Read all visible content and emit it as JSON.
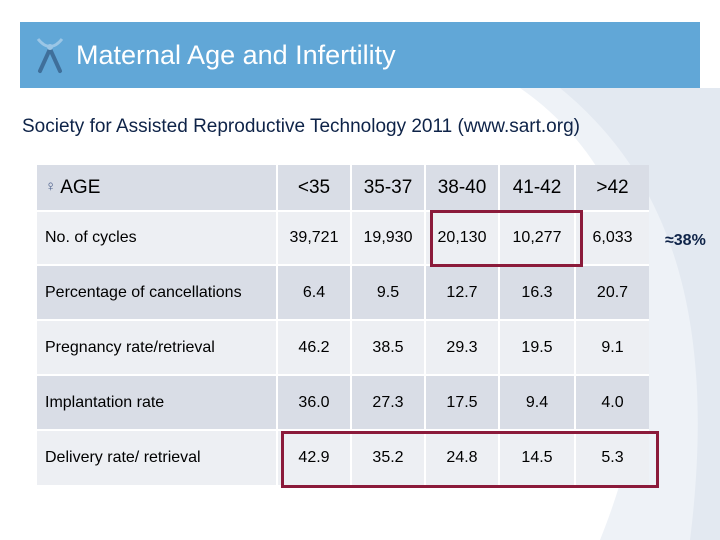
{
  "slide": {
    "title": "Maternal Age and Infertility",
    "subtitle": "Society for Assisted Reproductive Technology 2011 (www.sart.org)",
    "side_note": "≈38%",
    "colors": {
      "banner": "#61a7d7",
      "highlight": "#8b1a3a",
      "row_dark": "#d9dde6",
      "row_light": "#edeff3",
      "text_dark": "#0e2348"
    }
  },
  "table": {
    "header": {
      "icon": "female-symbol-icon",
      "icon_glyph": "♀",
      "label": "AGE",
      "columns": [
        "<35",
        "35-37",
        "38-40",
        "41-42",
        ">42"
      ]
    },
    "rows": [
      {
        "label": "No. of cycles",
        "values": [
          "39,721",
          "19,930",
          "20,130",
          "10,277",
          "6,033"
        ]
      },
      {
        "label": "Percentage of cancellations",
        "values": [
          "6.4",
          "9.5",
          "12.7",
          "16.3",
          "20.7"
        ]
      },
      {
        "label": "Pregnancy rate/retrieval",
        "values": [
          "46.2",
          "38.5",
          "29.3",
          "19.5",
          "9.1"
        ]
      },
      {
        "label": "Implantation rate",
        "values": [
          "36.0",
          "27.3",
          "17.5",
          "9.4",
          "4.0"
        ]
      },
      {
        "label": "Delivery rate/ retrieval",
        "values": [
          "42.9",
          "35.2",
          "24.8",
          "14.5",
          "5.3"
        ]
      }
    ]
  }
}
